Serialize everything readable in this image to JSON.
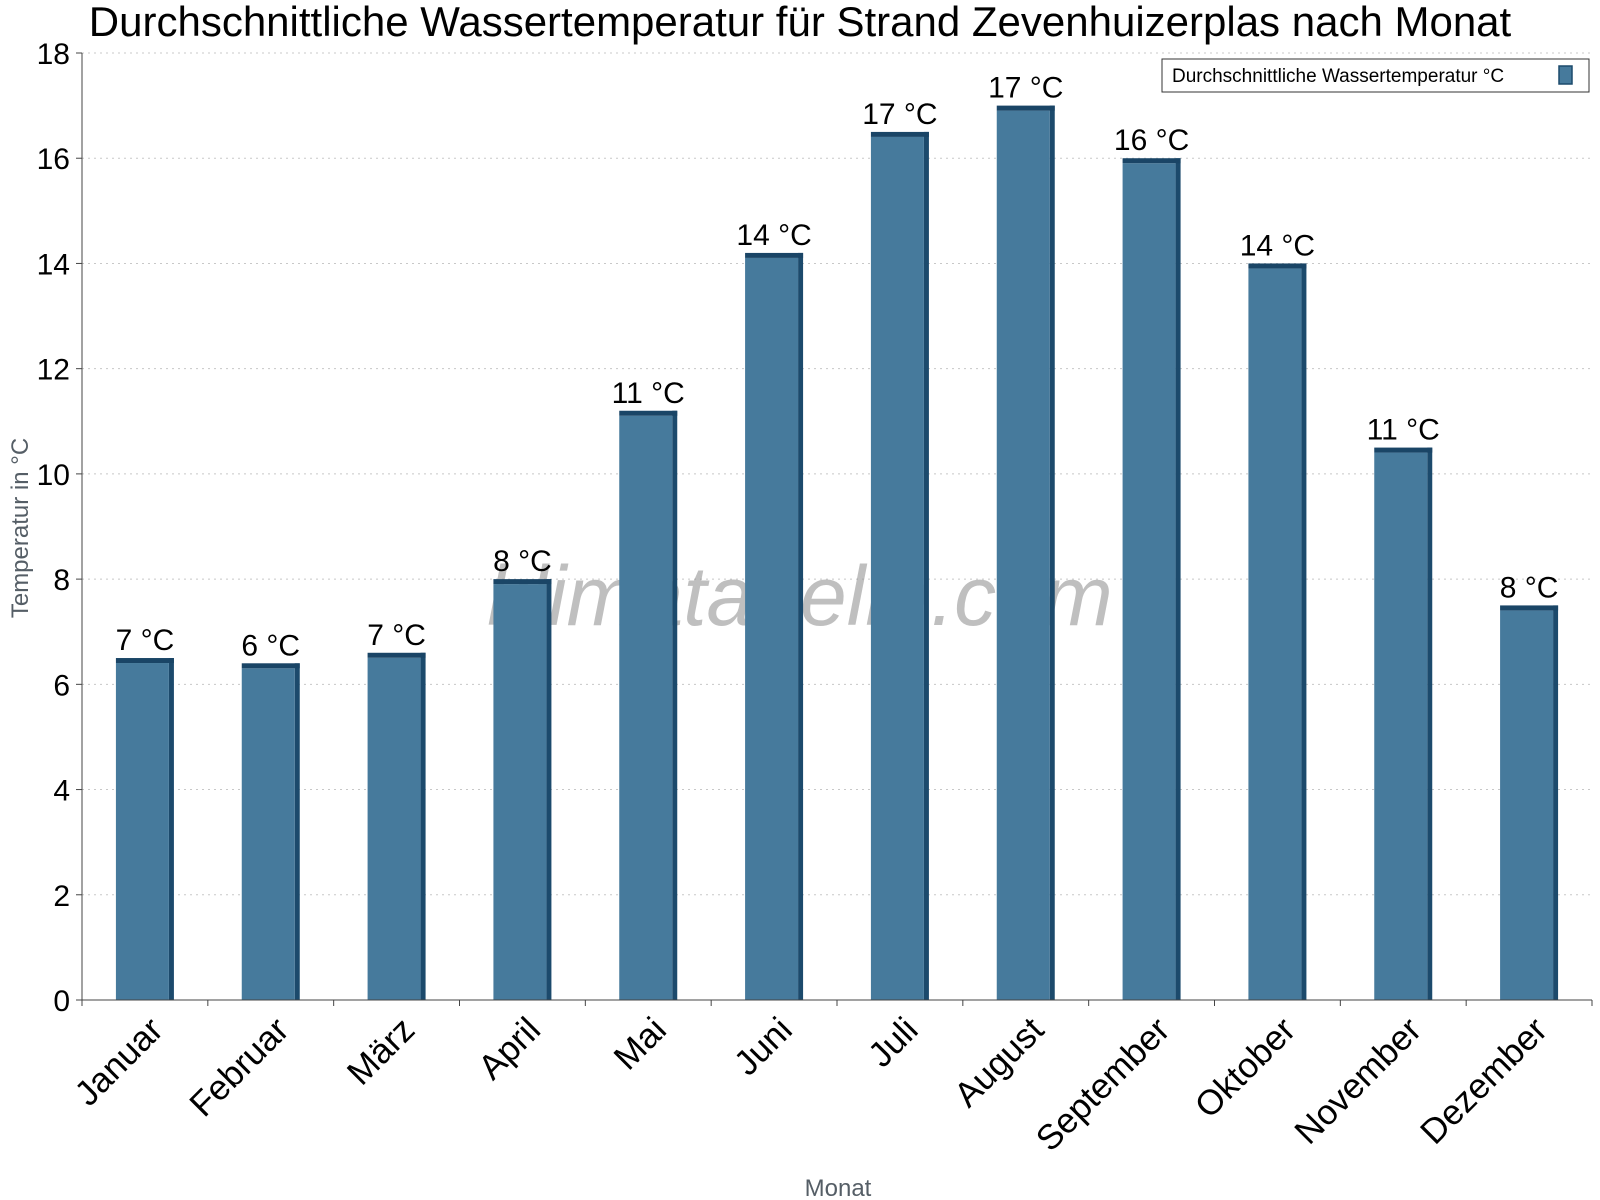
{
  "watermark": "klimatabelle.com",
  "colors": {
    "bar": "#467a9c",
    "bar_side": "#1c4a6c",
    "bar_top": "#1a4566",
    "grid": "#c8c8c8",
    "axis": "#444444"
  },
  "chart_data": {
    "type": "bar",
    "title": "Durchschnittliche Wassertemperatur für Strand Zevenhuizerplas nach Monat",
    "xlabel": "Monat",
    "ylabel": "Temperatur in °C",
    "ylim": [
      0,
      18
    ],
    "yticks": [
      0,
      2,
      4,
      6,
      8,
      10,
      12,
      14,
      16,
      18
    ],
    "grid": true,
    "legend_position": "top-right",
    "categories": [
      "Januar",
      "Februar",
      "März",
      "April",
      "Mai",
      "Juni",
      "Juli",
      "August",
      "September",
      "Oktober",
      "November",
      "Dezember"
    ],
    "series": [
      {
        "name": "Durchschnittliche Wassertemperatur °C",
        "values": [
          6.5,
          6.4,
          6.6,
          8.0,
          11.2,
          14.2,
          16.5,
          17.0,
          16.0,
          14.0,
          10.5,
          7.5
        ],
        "labels": [
          "7 °C",
          "6 °C",
          "7 °C",
          "8 °C",
          "11 °C",
          "14 °C",
          "17 °C",
          "17 °C",
          "16 °C",
          "14 °C",
          "11 °C",
          "8 °C"
        ]
      }
    ]
  }
}
